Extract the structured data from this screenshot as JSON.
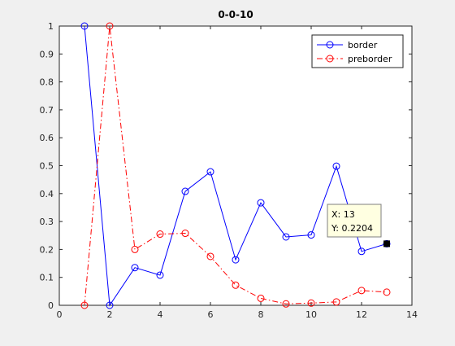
{
  "chart_data": {
    "type": "line",
    "title": "0-0-10",
    "xlabel": "",
    "ylabel": "",
    "xlim": [
      0,
      14
    ],
    "ylim": [
      0,
      1
    ],
    "xticks": [
      0,
      2,
      4,
      6,
      8,
      10,
      12,
      14
    ],
    "yticks": [
      0,
      0.1,
      0.2,
      0.3,
      0.4,
      0.5,
      0.6,
      0.7,
      0.8,
      0.9,
      1
    ],
    "grid": false,
    "legend_position": "top-right",
    "series": [
      {
        "name": "border",
        "color": "#0000ff",
        "line_style": "solid",
        "marker": "circle",
        "x": [
          1,
          2,
          3,
          4,
          5,
          6,
          7,
          8,
          9,
          10,
          11,
          12,
          13
        ],
        "y": [
          1.0,
          0.0,
          0.135,
          0.108,
          0.408,
          0.478,
          0.163,
          0.367,
          0.245,
          0.252,
          0.498,
          0.193,
          0.2204
        ]
      },
      {
        "name": "preborder",
        "color": "#ff0000",
        "line_style": "dashdot",
        "marker": "circle",
        "x": [
          1,
          2,
          3,
          4,
          5,
          6,
          7,
          8,
          9,
          10,
          11,
          12,
          13
        ],
        "y": [
          0.0,
          1.0,
          0.2,
          0.255,
          0.258,
          0.175,
          0.072,
          0.025,
          0.005,
          0.008,
          0.012,
          0.053,
          0.047
        ]
      }
    ],
    "datatip": {
      "x_label": "X: 13",
      "y_label": "Y: 0.2204",
      "x": 13,
      "y": 0.2204
    }
  }
}
